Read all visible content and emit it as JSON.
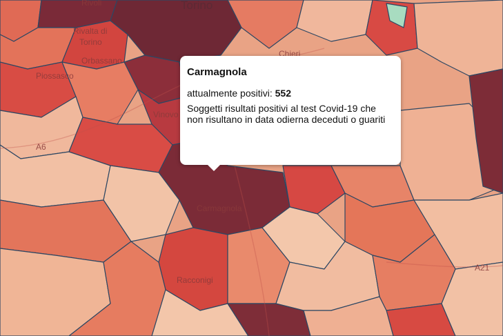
{
  "map": {
    "labels": [
      "Rivoli",
      "Torino",
      "Rivalta di",
      "Torino",
      "Orbassano",
      "Piossasco",
      "Chieri",
      "Vinovo",
      "Carmagnola",
      "Racconigi",
      "A6",
      "A21"
    ]
  },
  "tooltip": {
    "title": "Carmagnola",
    "metric_label": "attualmente positivi:",
    "metric_value": 552,
    "description": "Soggetti risultati positivi al test Covid-19 che non risultano in data odierna deceduti o guariti"
  }
}
